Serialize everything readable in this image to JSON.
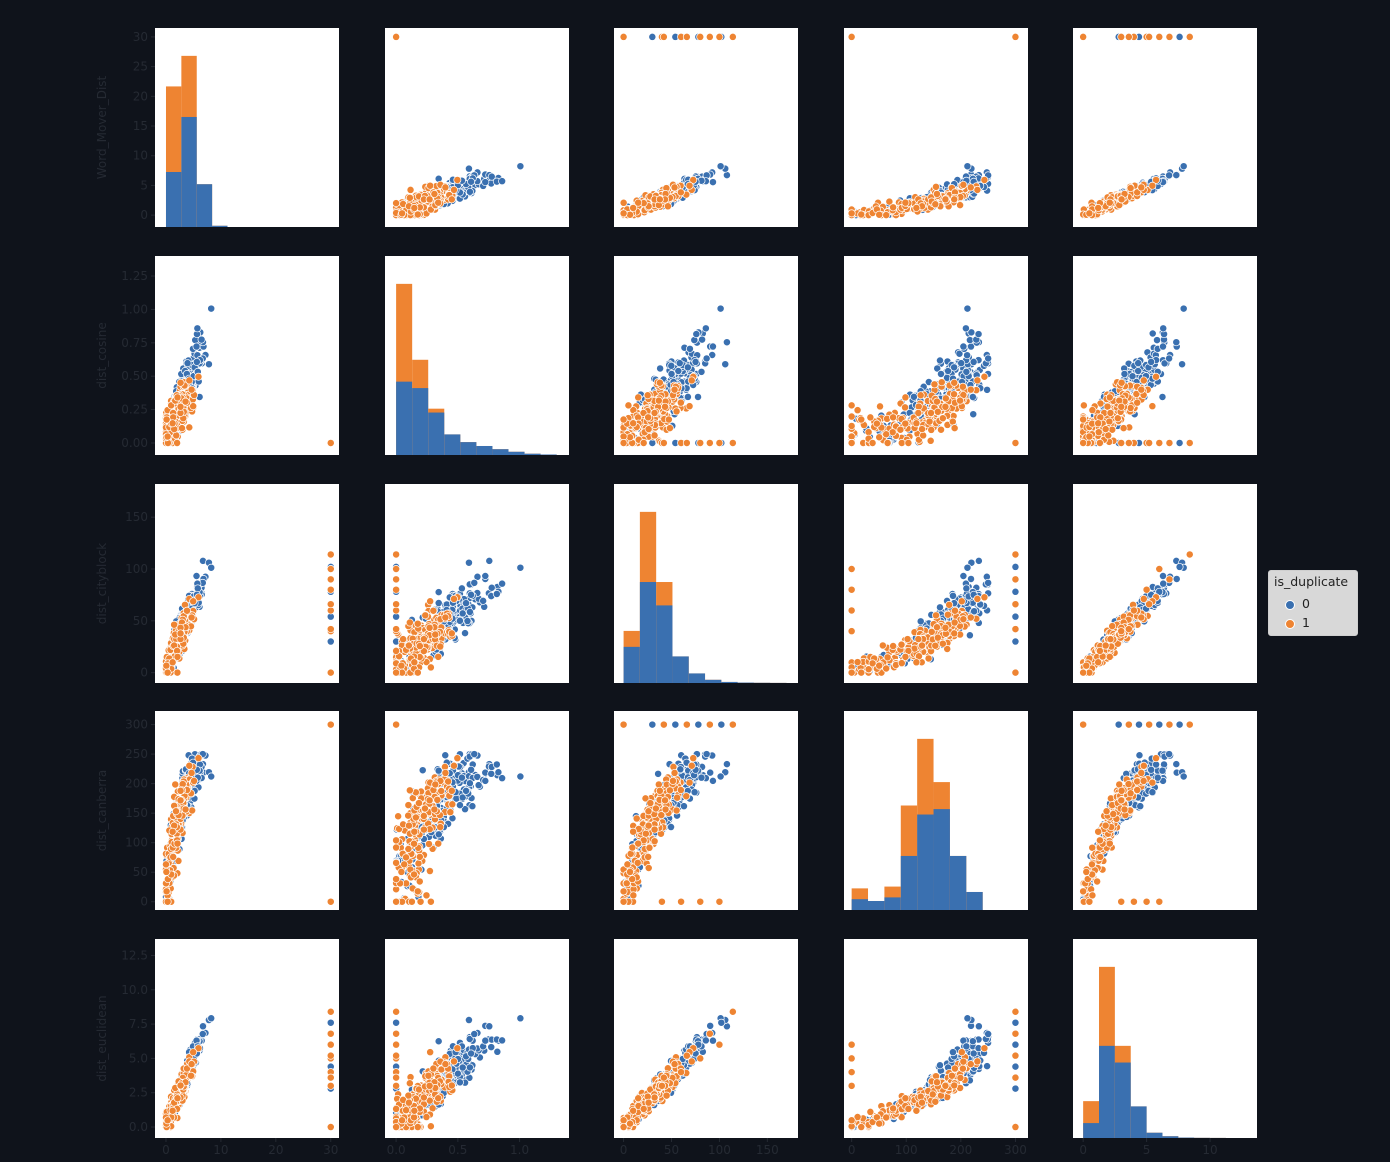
{
  "legend": {
    "title": "is_duplicate",
    "entries": [
      {
        "label": "0",
        "color": "#3a70b0"
      },
      {
        "label": "1",
        "color": "#ee8432"
      }
    ]
  },
  "chart_data": {
    "type": "scatter",
    "variables": [
      "Word_Mover_Dist",
      "dist_cosine",
      "dist_cityblock",
      "dist_canberra",
      "dist_euclidean"
    ],
    "axes": {
      "Word_Mover_Dist": {
        "range": [
          -2,
          31.5
        ],
        "ticks": [
          0,
          5,
          10,
          15,
          20,
          25,
          30
        ],
        "xticks": [
          0,
          10,
          20,
          30
        ]
      },
      "dist_cosine": {
        "range": [
          -0.09,
          1.4
        ],
        "ticks": [
          0.0,
          0.25,
          0.5,
          0.75,
          1.0,
          1.25
        ],
        "tick_labels": [
          "0.00",
          "0.25",
          "0.50",
          "0.75",
          "1.00",
          "1.25"
        ],
        "xticks": [
          0.0,
          0.5,
          1.0
        ],
        "xtick_labels": [
          "0.0",
          "0.5",
          "1.0"
        ]
      },
      "dist_cityblock": {
        "range": [
          -10,
          182
        ],
        "ticks": [
          0,
          50,
          100,
          150
        ],
        "xticks": [
          0,
          50,
          100,
          150
        ]
      },
      "dist_canberra": {
        "range": [
          -14,
          323
        ],
        "ticks": [
          0,
          50,
          100,
          150,
          200,
          250,
          300
        ],
        "xticks": [
          0,
          100,
          200,
          300
        ]
      },
      "dist_euclidean": {
        "range": [
          -0.8,
          13.7
        ],
        "ticks": [
          0.0,
          2.5,
          5.0,
          7.5,
          10.0,
          12.5
        ],
        "tick_labels": [
          "0.0",
          "2.5",
          "5.0",
          "7.5",
          "10.0",
          "12.5"
        ],
        "xticks": [
          0,
          5,
          10
        ]
      }
    },
    "series": [
      {
        "name": "0",
        "color": "#3a70b0"
      },
      {
        "name": "1",
        "color": "#ee8432"
      }
    ],
    "histograms": {
      "Word_Mover_Dist": {
        "bins": [
          0,
          2.8,
          5.6,
          8.4,
          11.2,
          14
        ],
        "class0": [
          9,
          18,
          7,
          0.2,
          0
        ],
        "total": [
          23,
          28,
          7,
          0.2,
          0
        ]
      },
      "dist_cosine": {
        "bins": [
          0,
          0.13,
          0.26,
          0.39,
          0.52,
          0.65,
          0.78,
          0.91,
          1.04,
          1.17,
          1.3
        ],
        "class0": [
          0.57,
          0.52,
          0.33,
          0.16,
          0.1,
          0.07,
          0.045,
          0.025,
          0.01,
          0.004
        ],
        "total": [
          1.33,
          0.74,
          0.36,
          0.16,
          0.1,
          0.07,
          0.045,
          0.025,
          0.01,
          0.004
        ]
      },
      "dist_cityblock": {
        "bins": [
          0,
          17,
          34,
          51,
          68,
          85,
          102,
          119,
          136,
          153,
          170
        ],
        "class0": [
          0.34,
          0.95,
          0.73,
          0.25,
          0.09,
          0.03,
          0.01,
          0.004,
          0.002,
          0.001
        ],
        "total": [
          0.49,
          1.61,
          0.95,
          0.25,
          0.09,
          0.03,
          0.01,
          0.004,
          0.002,
          0.001
        ]
      },
      "dist_canberra": {
        "bins": [
          0,
          30,
          60,
          90,
          120,
          150,
          180,
          210,
          240,
          270,
          300
        ],
        "class0": [
          0.06,
          0.05,
          0.07,
          0.3,
          0.53,
          0.56,
          0.3,
          0.1,
          0,
          0
        ],
        "total": [
          0.12,
          0.05,
          0.13,
          0.58,
          0.95,
          0.71,
          0.3,
          0.1,
          0,
          0
        ]
      },
      "dist_euclidean": {
        "bins": [
          0,
          1.25,
          2.5,
          3.75,
          5,
          6.25,
          7.5,
          8.75,
          10,
          11.25,
          12.5
        ],
        "class0": [
          0.17,
          1.05,
          0.86,
          0.36,
          0.06,
          0.02,
          0.005,
          0.002,
          0.001,
          0
        ],
        "total": [
          0.42,
          1.95,
          1.05,
          0.36,
          0.06,
          0.02,
          0.005,
          0.002,
          0.001,
          0
        ]
      }
    },
    "legend_placement": "right",
    "grid": false
  }
}
